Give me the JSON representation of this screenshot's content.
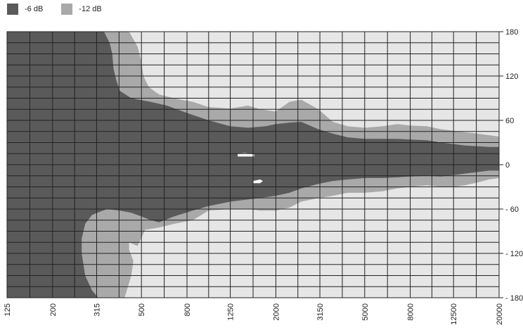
{
  "chart_data": {
    "type": "heatmap",
    "description_kind": "polar directivity contour map",
    "legend": [
      {
        "name": "-6 dB",
        "color": "#5a5a5a"
      },
      {
        "name": "-12 dB",
        "color": "#a9a9a9"
      }
    ],
    "background_color": "#e6e6e6",
    "grid": true,
    "legend_position": "top-left",
    "x": {
      "scale": "log",
      "unit": "Hz",
      "range": [
        125,
        20000
      ],
      "tick_labels": [
        "125",
        "200",
        "315",
        "500",
        "800",
        "1250",
        "2000",
        "3150",
        "5000",
        "8000",
        "12500",
        "20000"
      ]
    },
    "y": {
      "unit": "degrees",
      "range": [
        -180,
        180
      ],
      "tick_labels": [
        "180",
        "120",
        "60",
        "0",
        "- 60",
        "- 120",
        "- 180"
      ],
      "tick_values": [
        180,
        120,
        60,
        0,
        -60,
        -120,
        -180
      ]
    },
    "series": [
      {
        "name": "-12 dB",
        "points": [
          [
            125,
            180
          ],
          [
            440,
            180
          ],
          [
            480,
            160
          ],
          [
            500,
            140
          ],
          [
            510,
            120
          ],
          [
            540,
            105
          ],
          [
            600,
            95
          ],
          [
            700,
            90
          ],
          [
            850,
            85
          ],
          [
            1000,
            78
          ],
          [
            1250,
            76
          ],
          [
            1500,
            80
          ],
          [
            1700,
            75
          ],
          [
            2000,
            72
          ],
          [
            2300,
            85
          ],
          [
            2600,
            88
          ],
          [
            3100,
            75
          ],
          [
            3600,
            58
          ],
          [
            4200,
            52
          ],
          [
            5000,
            50
          ],
          [
            6000,
            52
          ],
          [
            7000,
            55
          ],
          [
            8000,
            53
          ],
          [
            9500,
            52
          ],
          [
            11000,
            48
          ],
          [
            12500,
            46
          ],
          [
            14000,
            44
          ],
          [
            16000,
            42
          ],
          [
            18000,
            40
          ],
          [
            20000,
            38
          ],
          [
            20000,
            -18
          ],
          [
            18000,
            -20
          ],
          [
            16000,
            -24
          ],
          [
            14000,
            -28
          ],
          [
            12500,
            -30
          ],
          [
            11000,
            -30
          ],
          [
            9500,
            -28
          ],
          [
            8000,
            -30
          ],
          [
            7000,
            -32
          ],
          [
            6000,
            -36
          ],
          [
            5000,
            -38
          ],
          [
            4200,
            -38
          ],
          [
            3600,
            -42
          ],
          [
            3100,
            -45
          ],
          [
            2600,
            -50
          ],
          [
            2300,
            -58
          ],
          [
            2000,
            -62
          ],
          [
            1700,
            -62
          ],
          [
            1500,
            -60
          ],
          [
            1250,
            -60
          ],
          [
            1000,
            -62
          ],
          [
            850,
            -75
          ],
          [
            700,
            -80
          ],
          [
            600,
            -85
          ],
          [
            520,
            -88
          ],
          [
            480,
            -110
          ],
          [
            460,
            -130
          ],
          [
            450,
            -150
          ],
          [
            430,
            -170
          ],
          [
            420,
            -180
          ],
          [
            125,
            -180
          ]
        ]
      },
      {
        "name": "-6 dB",
        "points": [
          [
            125,
            180
          ],
          [
            340,
            180
          ],
          [
            360,
            165
          ],
          [
            370,
            150
          ],
          [
            375,
            130
          ],
          [
            385,
            115
          ],
          [
            400,
            100
          ],
          [
            450,
            90
          ],
          [
            550,
            85
          ],
          [
            650,
            80
          ],
          [
            800,
            70
          ],
          [
            1000,
            60
          ],
          [
            1250,
            52
          ],
          [
            1500,
            50
          ],
          [
            1800,
            52
          ],
          [
            2000,
            55
          ],
          [
            2300,
            57
          ],
          [
            2600,
            58
          ],
          [
            3100,
            48
          ],
          [
            3600,
            42
          ],
          [
            4200,
            37
          ],
          [
            5000,
            35
          ],
          [
            6000,
            35
          ],
          [
            7000,
            35
          ],
          [
            8000,
            34
          ],
          [
            9500,
            33
          ],
          [
            11000,
            30
          ],
          [
            12500,
            28
          ],
          [
            14000,
            26
          ],
          [
            16000,
            25
          ],
          [
            18000,
            24
          ],
          [
            20000,
            24
          ],
          [
            20000,
            -8
          ],
          [
            18000,
            -8
          ],
          [
            16000,
            -10
          ],
          [
            14000,
            -12
          ],
          [
            12500,
            -14
          ],
          [
            11000,
            -16
          ],
          [
            9500,
            -15
          ],
          [
            8000,
            -16
          ],
          [
            7000,
            -17
          ],
          [
            6000,
            -18
          ],
          [
            5000,
            -18
          ],
          [
            4200,
            -20
          ],
          [
            3600,
            -22
          ],
          [
            3100,
            -26
          ],
          [
            2600,
            -32
          ],
          [
            2300,
            -38
          ],
          [
            2000,
            -42
          ],
          [
            1700,
            -45
          ],
          [
            1500,
            -47
          ],
          [
            1250,
            -50
          ],
          [
            1000,
            -56
          ],
          [
            850,
            -62
          ],
          [
            700,
            -70
          ],
          [
            600,
            -78
          ],
          [
            550,
            -75
          ],
          [
            500,
            -70
          ],
          [
            450,
            -65
          ],
          [
            400,
            -62
          ],
          [
            350,
            -60
          ],
          [
            300,
            -68
          ],
          [
            280,
            -80
          ],
          [
            270,
            -100
          ],
          [
            270,
            -120
          ],
          [
            280,
            -150
          ],
          [
            300,
            -170
          ],
          [
            320,
            -180
          ],
          [
            125,
            -180
          ]
        ]
      }
    ],
    "holes": [
      {
        "color": "#ffffff",
        "points": [
          [
            1350,
            15
          ],
          [
            1450,
            16
          ],
          [
            1600,
            14
          ],
          [
            1600,
            11
          ],
          [
            1450,
            11
          ],
          [
            1350,
            11
          ]
        ]
      },
      {
        "color": "#ffffff",
        "points": [
          [
            1580,
            -22
          ],
          [
            1700,
            -20
          ],
          [
            1750,
            -22
          ],
          [
            1700,
            -25
          ],
          [
            1580,
            -25
          ]
        ]
      },
      {
        "color": "#e6e6e6",
        "points": [
          [
            440,
            -105
          ],
          [
            480,
            -110
          ],
          [
            500,
            -125
          ],
          [
            490,
            -140
          ],
          [
            460,
            -130
          ],
          [
            440,
            -115
          ]
        ]
      }
    ]
  }
}
